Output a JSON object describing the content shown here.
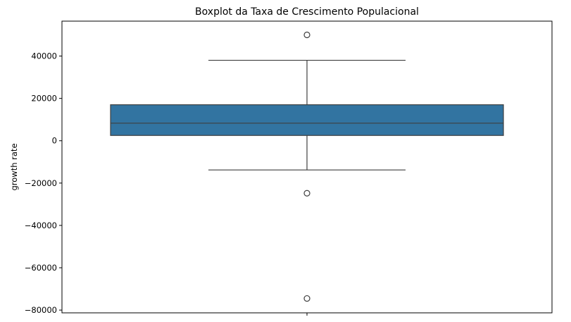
{
  "chart_data": {
    "type": "boxplot",
    "title": "Boxplot da Taxa de Crescimento Populacional",
    "xlabel": "",
    "ylabel": "growth rate",
    "ylim": [
      -81300,
      56500
    ],
    "yticks": [
      40000,
      20000,
      0,
      -20000,
      -40000,
      -60000,
      -80000
    ],
    "ytick_labels": [
      "40000",
      "20000",
      "0",
      "−20000",
      "−40000",
      "−60000",
      "−80000"
    ],
    "grid": false,
    "box": {
      "whisker_low": -13800,
      "q1": 2500,
      "median": 8300,
      "q3": 17000,
      "whisker_high": 38000
    },
    "outliers": [
      50000,
      -24800,
      -74500
    ],
    "colors": {
      "box_fill": "#3274a1",
      "line": "#3f3f3f"
    }
  }
}
